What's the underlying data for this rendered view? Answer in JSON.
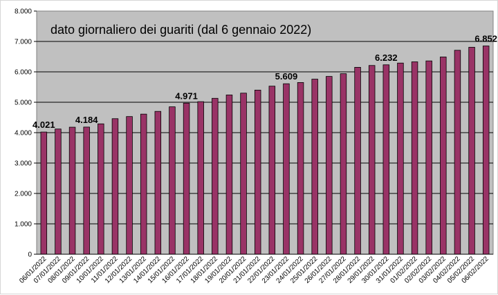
{
  "chart_data": {
    "type": "bar",
    "title": "dato giornaliero dei guariti (dal 6 gennaio 2022)",
    "xlabel": "",
    "ylabel": "",
    "ylim": [
      0,
      8000
    ],
    "yticks": [
      "0",
      "1.000",
      "2.000",
      "3.000",
      "4.000",
      "5.000",
      "6.000",
      "7.000",
      "8.000"
    ],
    "grid": true,
    "plot_background": "#c0c0c0",
    "bar_color": "#993366",
    "categories": [
      "06/01/2022",
      "07/01/2022",
      "08/01/2022",
      "09/01/2022",
      "10/01/2022",
      "11/01/2022",
      "12/01/2022",
      "13/01/2022",
      "14/01/2022",
      "15/01/2022",
      "16/01/2022",
      "17/01/2022",
      "18/01/2022",
      "19/01/2022",
      "20/01/2022",
      "21/01/2022",
      "22/01/2022",
      "23/01/2022",
      "24/01/2022",
      "25/01/2022",
      "26/01/2022",
      "27/01/2022",
      "28/01/2022",
      "29/01/2022",
      "30/01/2022",
      "31/01/2022",
      "01/02/2022",
      "02/02/2022",
      "03/02/2022",
      "04/02/2022",
      "05/02/2022",
      "06/02/2022"
    ],
    "values": [
      4021,
      4120,
      4180,
      4184,
      4290,
      4460,
      4530,
      4610,
      4700,
      4850,
      4971,
      5020,
      5130,
      5240,
      5300,
      5400,
      5530,
      5609,
      5650,
      5760,
      5850,
      5940,
      6150,
      6210,
      6232,
      6290,
      6330,
      6360,
      6490,
      6710,
      6810,
      6852
    ],
    "data_labels": [
      {
        "index": 0,
        "text": "4.021"
      },
      {
        "index": 3,
        "text": "4.184"
      },
      {
        "index": 10,
        "text": "4.971"
      },
      {
        "index": 17,
        "text": "5.609"
      },
      {
        "index": 24,
        "text": "6.232"
      },
      {
        "index": 31,
        "text": "6.852"
      }
    ]
  }
}
